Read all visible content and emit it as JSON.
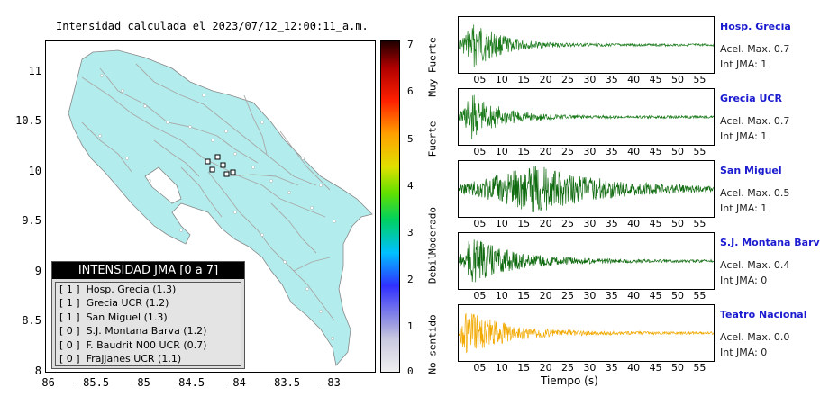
{
  "map": {
    "title": "Intensidad calculada el 2023/07/12_12:00:11_a.m.",
    "lat_ticks": [
      "11",
      "10.5",
      "10",
      "9.5",
      "9",
      "8.5",
      "8"
    ],
    "lon_ticks": [
      "-86",
      "-85.5",
      "-85",
      "-84.5",
      "-84",
      "-83.5",
      "-83"
    ],
    "legend": {
      "header": "INTENSIDAD JMA [0 a 7]",
      "rows": [
        {
          "jma": "[ 1 ]",
          "name": "Hosp. Grecia (1.3)"
        },
        {
          "jma": "[ 1 ]",
          "name": "Grecia UCR (1.2)"
        },
        {
          "jma": "[ 1 ]",
          "name": "San Miguel (1.3)"
        },
        {
          "jma": "[ 0 ]",
          "name": "S.J. Montana Barva (1.2)"
        },
        {
          "jma": "[ 0 ]",
          "name": "F. Baudrit N00 UCR (0.7)"
        },
        {
          "jma": "[ 0 ]",
          "name": "Frajjanes UCR (1.1)"
        }
      ]
    }
  },
  "scale": {
    "ticks": [
      "7",
      "6",
      "5",
      "4",
      "3",
      "2",
      "1",
      "0"
    ],
    "categories": [
      "Muy Fuerte",
      "Fuerte",
      "Moderado",
      "Debil",
      "No sentido"
    ]
  },
  "traces": {
    "x_ticks": [
      "05",
      "10",
      "15",
      "20",
      "25",
      "30",
      "35",
      "40",
      "45",
      "50",
      "55"
    ],
    "xlabel": "Tiempo (s)",
    "stations": [
      {
        "name": "Hosp. Grecia",
        "accel": "Acel. Max. 0.7",
        "jma": "Int JMA: 1",
        "color": "#1a7a1a"
      },
      {
        "name": "Grecia UCR",
        "accel": "Acel. Max. 0.7",
        "jma": "Int JMA: 1",
        "color": "#1a7a1a"
      },
      {
        "name": "San Miguel",
        "accel": "Acel. Max. 0.5",
        "jma": "Int JMA: 1",
        "color": "#0e6a0e"
      },
      {
        "name": "S.J. Montana Barva",
        "accel": "Acel. Max. 0.4",
        "jma": "Int JMA: 0",
        "color": "#0e6a0e"
      },
      {
        "name": "Teatro Nacional",
        "accel": "Acel. Max. 0.0",
        "jma": "Int JMA: 0",
        "color": "#f2a900"
      }
    ]
  },
  "chart_data": {
    "type": "line",
    "title": "",
    "xlabel": "Tiempo (s)",
    "ylabel": "",
    "xlim": [
      0,
      58
    ],
    "series": [
      {
        "name": "Hosp. Grecia",
        "peak_time": 4,
        "decay": 6
      },
      {
        "name": "Grecia UCR",
        "peak_time": 3,
        "decay": 7
      },
      {
        "name": "San Miguel",
        "peak_time": 18,
        "decay": 16
      },
      {
        "name": "S.J. Montana Barva",
        "peak_time": 3,
        "decay": 10
      },
      {
        "name": "Teatro Nacional",
        "peak_time": 2,
        "decay": 9
      }
    ]
  }
}
